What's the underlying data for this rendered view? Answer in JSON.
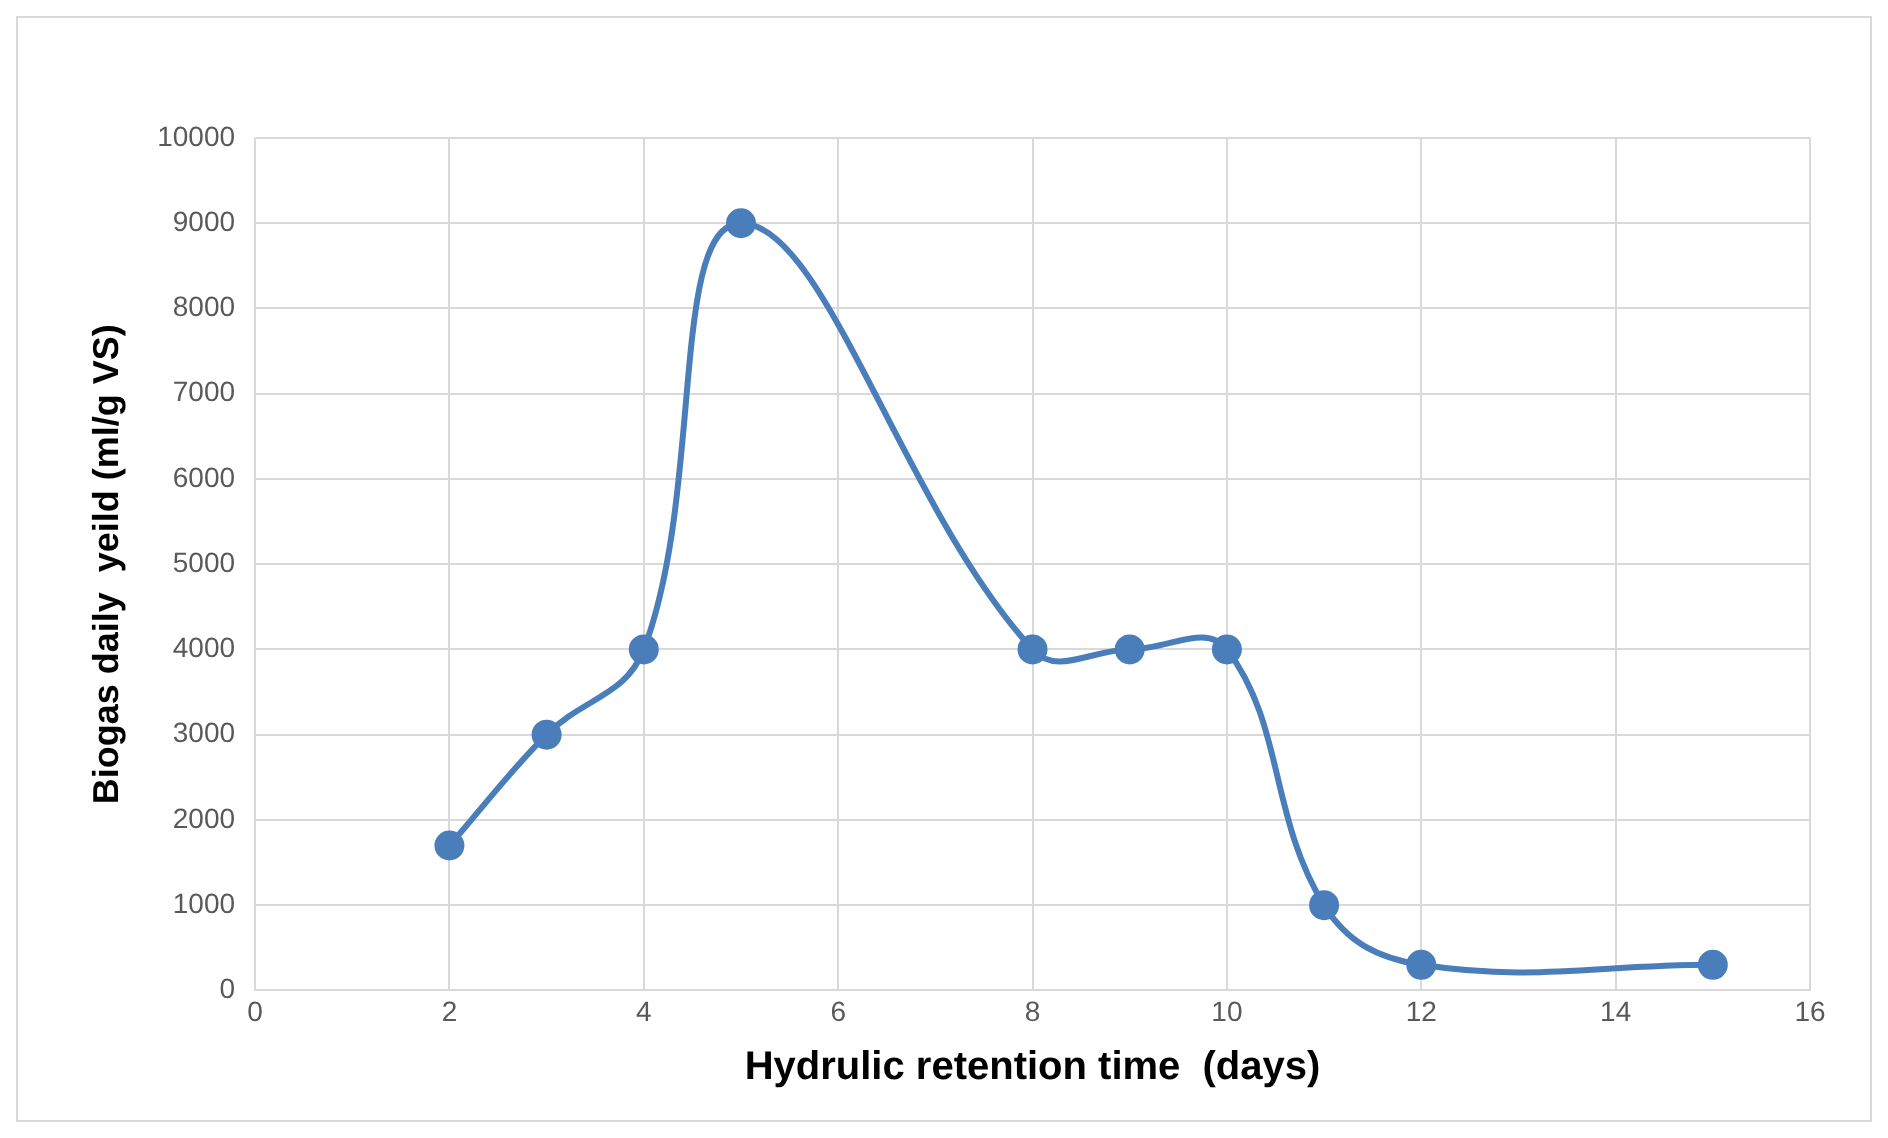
{
  "chart_data": {
    "type": "line",
    "xlabel": "Hydrulic retention time  (days)",
    "ylabel": "Biogas daily  yeild (ml/g VS)",
    "x": [
      2,
      3,
      4,
      5,
      8,
      9,
      10,
      11,
      12,
      15
    ],
    "series": [
      {
        "color": "#4a7ebb",
        "values": [
          1700,
          3000,
          4000,
          9000,
          4000,
          4000,
          4000,
          1000,
          300,
          300
        ]
      }
    ],
    "xlim": [
      0,
      16
    ],
    "xticks": [
      0,
      2,
      4,
      6,
      8,
      10,
      12,
      14,
      16
    ],
    "ylim": [
      0,
      10000
    ],
    "yticks": [
      0,
      1000,
      2000,
      3000,
      4000,
      5000,
      6000,
      7000,
      8000,
      9000,
      10000
    ],
    "grid": true,
    "legend": false,
    "marker": "circle",
    "line_style": "solid"
  }
}
